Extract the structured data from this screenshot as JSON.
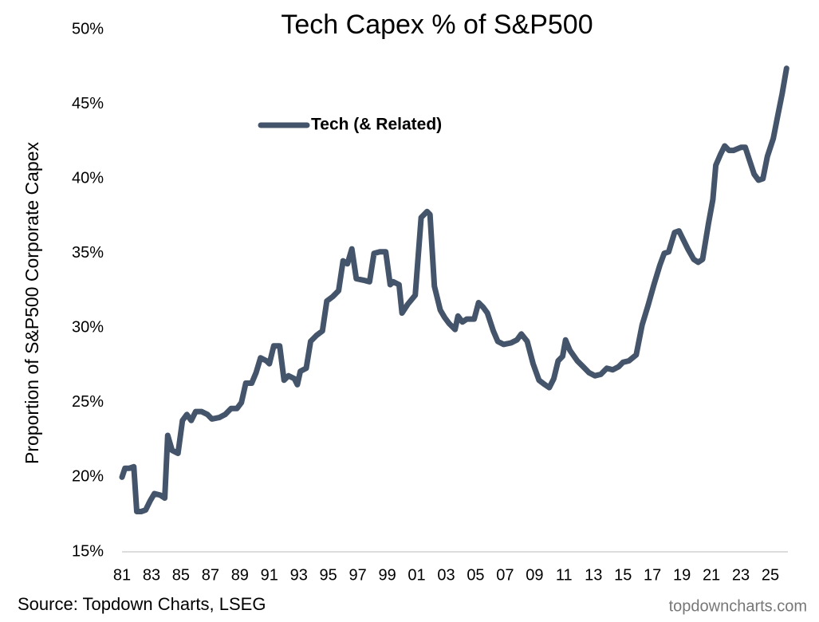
{
  "chart_data": {
    "type": "line",
    "title": "Tech Capex % of S&P500",
    "y_label": "Proportion of S&P500 Corporate Capex",
    "source": "Source: Topdown Charts, LSEG",
    "watermark": "topdowncharts.com",
    "legend_position": "upper center",
    "xlim": [
      1981,
      2026.3
    ],
    "ylim": [
      15,
      50
    ],
    "xticks": [
      {
        "value": 1981,
        "label": "81"
      },
      {
        "value": 1983,
        "label": "83"
      },
      {
        "value": 1985,
        "label": "85"
      },
      {
        "value": 1987,
        "label": "87"
      },
      {
        "value": 1989,
        "label": "89"
      },
      {
        "value": 1991,
        "label": "91"
      },
      {
        "value": 1993,
        "label": "93"
      },
      {
        "value": 1995,
        "label": "95"
      },
      {
        "value": 1997,
        "label": "97"
      },
      {
        "value": 1999,
        "label": "99"
      },
      {
        "value": 2001,
        "label": "01"
      },
      {
        "value": 2003,
        "label": "03"
      },
      {
        "value": 2005,
        "label": "05"
      },
      {
        "value": 2007,
        "label": "07"
      },
      {
        "value": 2009,
        "label": "09"
      },
      {
        "value": 2011,
        "label": "11"
      },
      {
        "value": 2013,
        "label": "13"
      },
      {
        "value": 2015,
        "label": "15"
      },
      {
        "value": 2017,
        "label": "17"
      },
      {
        "value": 2019,
        "label": "19"
      },
      {
        "value": 2021,
        "label": "21"
      },
      {
        "value": 2023,
        "label": "23"
      },
      {
        "value": 2025,
        "label": "25"
      }
    ],
    "yticks": [
      {
        "value": 15,
        "label": "15%"
      },
      {
        "value": 20,
        "label": "20%"
      },
      {
        "value": 25,
        "label": "25%"
      },
      {
        "value": 30,
        "label": "30%"
      },
      {
        "value": 35,
        "label": "35%"
      },
      {
        "value": 40,
        "label": "40%"
      },
      {
        "value": 45,
        "label": "45%"
      },
      {
        "value": 50,
        "label": "50%"
      }
    ],
    "x": [
      1981.0,
      1981.2,
      1981.5,
      1981.8,
      1982.0,
      1982.3,
      1982.6,
      1982.9,
      1983.2,
      1983.6,
      1983.9,
      1984.1,
      1984.4,
      1984.8,
      1985.1,
      1985.4,
      1985.7,
      1986.0,
      1986.4,
      1986.8,
      1987.1,
      1987.6,
      1988.0,
      1988.4,
      1988.8,
      1989.1,
      1989.4,
      1989.8,
      1990.1,
      1990.4,
      1990.8,
      1991.0,
      1991.3,
      1991.7,
      1992.0,
      1992.3,
      1992.7,
      1992.9,
      1993.1,
      1993.5,
      1993.8,
      1994.2,
      1994.6,
      1994.9,
      1995.3,
      1995.7,
      1996.0,
      1996.3,
      1996.6,
      1996.9,
      1997.4,
      1997.8,
      1998.1,
      1998.5,
      1998.9,
      1999.2,
      1999.4,
      1999.8,
      2000.0,
      2000.4,
      2000.9,
      2001.3,
      2001.7,
      2001.9,
      2002.2,
      2002.6,
      2002.9,
      2003.2,
      2003.6,
      2003.8,
      2004.1,
      2004.4,
      2004.9,
      2005.2,
      2005.5,
      2005.8,
      2006.2,
      2006.5,
      2006.9,
      2007.4,
      2007.8,
      2008.1,
      2008.5,
      2008.9,
      2009.3,
      2009.7,
      2010.0,
      2010.3,
      2010.6,
      2010.9,
      2011.1,
      2011.4,
      2011.9,
      2012.3,
      2012.7,
      2013.1,
      2013.5,
      2013.9,
      2014.3,
      2014.7,
      2015.0,
      2015.4,
      2015.9,
      2016.3,
      2016.7,
      2017.1,
      2017.5,
      2017.8,
      2018.1,
      2018.5,
      2018.8,
      2019.1,
      2019.4,
      2019.8,
      2020.1,
      2020.4,
      2020.8,
      2021.1,
      2021.3,
      2021.6,
      2021.9,
      2022.2,
      2022.5,
      2023.0,
      2023.3,
      2023.6,
      2023.9,
      2024.2,
      2024.5,
      2024.8,
      2025.2,
      2025.5,
      2025.8,
      2026.1
    ],
    "series": [
      {
        "name": "Tech (& Related)",
        "color": "#44546a",
        "values": [
          20.0,
          20.6,
          20.6,
          20.7,
          17.7,
          17.7,
          17.8,
          18.4,
          18.9,
          18.8,
          18.6,
          22.8,
          21.8,
          21.6,
          23.8,
          24.2,
          23.8,
          24.4,
          24.4,
          24.2,
          23.9,
          24.0,
          24.2,
          24.6,
          24.6,
          25.0,
          26.3,
          26.3,
          27.0,
          28.0,
          27.8,
          27.6,
          28.8,
          28.8,
          26.5,
          26.8,
          26.6,
          26.2,
          27.1,
          27.3,
          29.1,
          29.5,
          29.8,
          31.8,
          32.1,
          32.5,
          34.5,
          34.3,
          35.3,
          33.3,
          33.2,
          33.1,
          35.0,
          35.1,
          35.1,
          32.9,
          33.1,
          32.9,
          31.0,
          31.6,
          32.2,
          37.4,
          37.8,
          37.6,
          32.8,
          31.2,
          30.7,
          30.3,
          29.9,
          30.8,
          30.4,
          30.6,
          30.6,
          31.7,
          31.4,
          31.0,
          29.8,
          29.1,
          28.9,
          29.0,
          29.2,
          29.6,
          29.1,
          27.6,
          26.5,
          26.2,
          26.0,
          26.6,
          27.8,
          28.1,
          29.2,
          28.5,
          27.8,
          27.4,
          27.0,
          26.8,
          26.9,
          27.3,
          27.2,
          27.4,
          27.7,
          27.8,
          28.2,
          30.2,
          31.5,
          32.9,
          34.2,
          35.0,
          35.1,
          36.4,
          36.5,
          35.9,
          35.3,
          34.6,
          34.4,
          34.6,
          37.0,
          38.6,
          40.9,
          41.6,
          42.2,
          41.9,
          41.9,
          42.1,
          42.1,
          41.2,
          40.3,
          39.9,
          40.0,
          41.5,
          42.7,
          44.2,
          45.7,
          47.4
        ]
      }
    ]
  }
}
